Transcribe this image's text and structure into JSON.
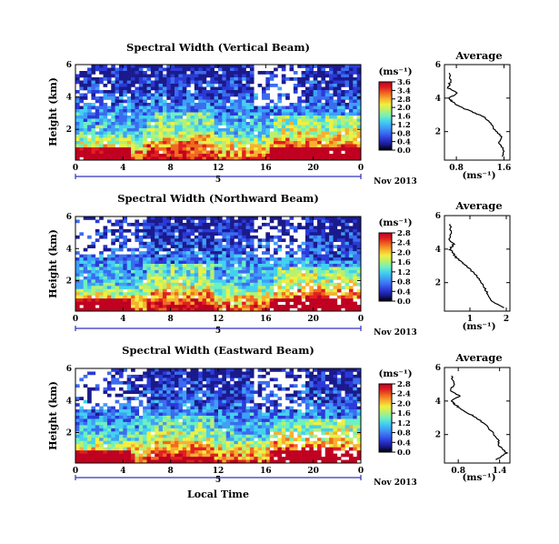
{
  "colors": {
    "colormap": [
      "#000000",
      "#1a1a8c",
      "#2a3ad8",
      "#3b6cf0",
      "#3ea0f6",
      "#44d0f0",
      "#6ff0c0",
      "#b8f070",
      "#f0f040",
      "#f8b030",
      "#f06a20",
      "#e02020",
      "#c00020"
    ],
    "date_axis": "#3030c0"
  },
  "shared": {
    "day_label": "5",
    "date_label": "Nov 2013",
    "xlabel": "Local Time",
    "ylabel": "Height (km)",
    "units_label": "(ms⁻¹)",
    "average_title": "Average"
  },
  "chart_data": [
    {
      "type": "heatmap",
      "title": "Spectral Width (Vertical Beam)",
      "xlabel": "",
      "ylabel": "Height (km)",
      "x_ticks": [
        "0",
        "4",
        "8",
        "12",
        "16",
        "20",
        "0"
      ],
      "y_ticks": [
        "6",
        "4",
        "2"
      ],
      "ylim_km": [
        0.1,
        6
      ],
      "colorbar": {
        "label": "(ms⁻¹)",
        "ticks": [
          "3.6",
          "3.4",
          "2.8",
          "2.0",
          "1.6",
          "1.2",
          "0.8",
          "0.4",
          "0.0"
        ],
        "range": [
          0,
          3.6
        ]
      },
      "average_profile": {
        "title": "Average",
        "xlabel": "(ms⁻¹)",
        "x_ticks": [
          "0.8",
          "1.6"
        ],
        "xlim": [
          0.6,
          1.7
        ],
        "y_ticks": [
          "6",
          "4",
          "2"
        ],
        "ylim_km": [
          0.3,
          6
        ],
        "height_km": [
          0.5,
          0.9,
          1.3,
          1.7,
          2.1,
          2.5,
          2.9,
          3.2,
          3.5,
          3.8,
          4.0,
          4.3,
          4.6,
          5.0,
          5.5
        ],
        "width_ms": [
          1.58,
          1.6,
          1.52,
          1.55,
          1.45,
          1.38,
          1.25,
          1.05,
          0.85,
          0.72,
          0.68,
          0.82,
          0.66,
          0.7,
          0.68
        ]
      }
    },
    {
      "type": "heatmap",
      "title": "Spectral Width (Northward Beam)",
      "xlabel": "",
      "ylabel": "Height (km)",
      "x_ticks": [
        "0",
        "4",
        "8",
        "12",
        "16",
        "20",
        "0"
      ],
      "y_ticks": [
        "6",
        "4",
        "2"
      ],
      "ylim_km": [
        0.1,
        6
      ],
      "colorbar": {
        "label": "(ms⁻¹)",
        "ticks": [
          "2.8",
          "2.4",
          "2.0",
          "1.6",
          "1.2",
          "0.8",
          "0.4",
          "0.0"
        ],
        "range": [
          0,
          2.8
        ]
      },
      "average_profile": {
        "title": "Average",
        "xlabel": "(ms⁻¹)",
        "x_ticks": [
          "1",
          "2"
        ],
        "xlim": [
          0.3,
          2.1
        ],
        "y_ticks": [
          "6",
          "4",
          "2"
        ],
        "ylim_km": [
          0.3,
          6
        ],
        "height_km": [
          0.5,
          0.9,
          1.3,
          1.7,
          2.1,
          2.5,
          2.9,
          3.2,
          3.5,
          3.8,
          4.0,
          4.3,
          4.6,
          5.0,
          5.5
        ],
        "width_ms": [
          1.95,
          1.6,
          1.5,
          1.4,
          1.28,
          1.15,
          0.95,
          0.8,
          0.62,
          0.52,
          0.45,
          0.55,
          0.42,
          0.48,
          0.45
        ]
      }
    },
    {
      "type": "heatmap",
      "title": "Spectral Width (Eastward Beam)",
      "xlabel": "Local Time",
      "ylabel": "Height (km)",
      "x_ticks": [
        "0",
        "4",
        "8",
        "12",
        "16",
        "20",
        "0"
      ],
      "y_ticks": [
        "6",
        "4",
        "2"
      ],
      "ylim_km": [
        0.1,
        6
      ],
      "colorbar": {
        "label": "(ms⁻¹)",
        "ticks": [
          "2.8",
          "2.4",
          "2.0",
          "1.6",
          "1.2",
          "0.8",
          "0.4",
          "0.0"
        ],
        "range": [
          0,
          2.8
        ]
      },
      "average_profile": {
        "title": "Average",
        "xlabel": "(ms⁻¹)",
        "x_ticks": [
          "0.8",
          "1.4"
        ],
        "xlim": [
          0.6,
          1.55
        ],
        "y_ticks": [
          "6",
          "4",
          "2"
        ],
        "ylim_km": [
          0.3,
          6
        ],
        "height_km": [
          0.5,
          0.9,
          1.3,
          1.7,
          2.1,
          2.5,
          2.9,
          3.2,
          3.5,
          3.8,
          4.0,
          4.3,
          4.6,
          5.0,
          5.5
        ],
        "width_ms": [
          1.35,
          1.5,
          1.4,
          1.38,
          1.3,
          1.22,
          1.1,
          0.98,
          0.85,
          0.75,
          0.7,
          0.82,
          0.68,
          0.74,
          0.7
        ]
      }
    }
  ]
}
